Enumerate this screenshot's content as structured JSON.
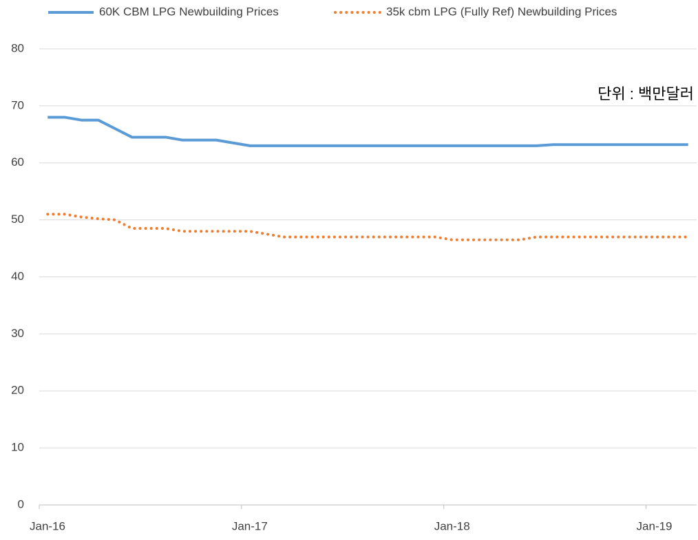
{
  "chart_data": {
    "type": "line",
    "annotation": "단위 : 백만달러",
    "categories": [
      "Jan-16",
      null,
      null,
      null,
      null,
      null,
      null,
      null,
      null,
      null,
      null,
      null,
      "Jan-17",
      null,
      null,
      null,
      null,
      null,
      null,
      null,
      null,
      null,
      null,
      null,
      "Jan-18",
      null,
      null,
      null,
      null,
      null,
      null,
      null,
      null,
      null,
      null,
      null,
      "Jan-19",
      null,
      null
    ],
    "series": [
      {
        "name": "60K CBM LPG Newbuilding Prices",
        "color": "#5b9bd5",
        "style": "solid",
        "values": [
          68,
          68,
          67.5,
          67.5,
          66,
          64.5,
          64.5,
          64.5,
          64,
          64,
          64,
          63.5,
          63,
          63,
          63,
          63,
          63,
          63,
          63,
          63,
          63,
          63,
          63,
          63,
          63,
          63,
          63,
          63,
          63,
          63,
          63.2,
          63.2,
          63.2,
          63.2,
          63.2,
          63.2,
          63.2,
          63.2,
          63.2
        ]
      },
      {
        "name": "35k cbm LPG (Fully Ref) Newbuilding Prices",
        "color": "#ed7d31",
        "style": "dotted",
        "values": [
          51,
          51,
          50.5,
          50.2,
          50,
          48.5,
          48.5,
          48.5,
          48,
          48,
          48,
          48,
          48,
          47.5,
          47,
          47,
          47,
          47,
          47,
          47,
          47,
          47,
          47,
          47,
          46.5,
          46.5,
          46.5,
          46.5,
          46.5,
          47,
          47,
          47,
          47,
          47,
          47,
          47,
          47,
          47,
          47
        ]
      }
    ],
    "ylim": [
      0,
      80
    ],
    "yticks": [
      0,
      10,
      20,
      30,
      40,
      50,
      60,
      70,
      80
    ],
    "grid": true,
    "legend": "top"
  }
}
